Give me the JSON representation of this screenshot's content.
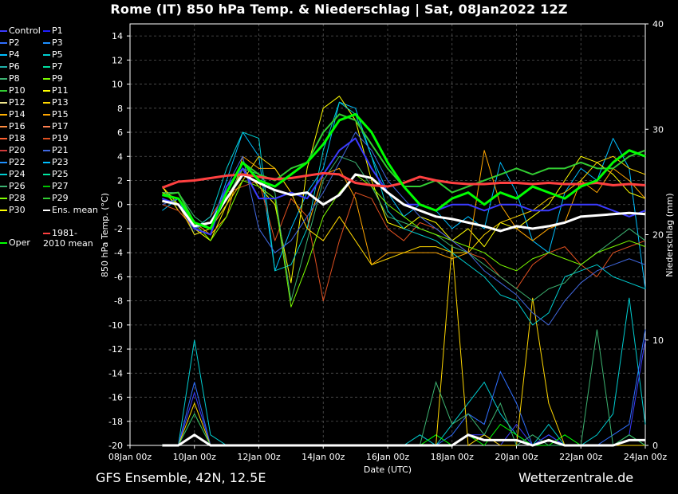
{
  "title": "Rome  (IT)  850 hPa Temp. & Niederschlag | Sat, 08Jan2022 12Z",
  "footer": {
    "left": "GFS Ensemble, 42N, 12.5E",
    "right": "Wetterzentrale.de"
  },
  "legend": [
    {
      "label": "Control",
      "color": "#3b3bff"
    },
    {
      "label": "P1",
      "color": "#2020ff"
    },
    {
      "label": "P2",
      "color": "#2f6fff"
    },
    {
      "label": "P3",
      "color": "#1e90ff"
    },
    {
      "label": "P4",
      "color": "#00bfff"
    },
    {
      "label": "P5",
      "color": "#00ced1"
    },
    {
      "label": "P6",
      "color": "#20b2aa"
    },
    {
      "label": "P7",
      "color": "#00e0a0"
    },
    {
      "label": "P8",
      "color": "#3cb371"
    },
    {
      "label": "P9",
      "color": "#7cfc00"
    },
    {
      "label": "P10",
      "color": "#32cd32"
    },
    {
      "label": "P11",
      "color": "#ffff00"
    },
    {
      "label": "P12",
      "color": "#f0e68c"
    },
    {
      "label": "P13",
      "color": "#ffd700"
    },
    {
      "label": "P14",
      "color": "#ffb000"
    },
    {
      "label": "P15",
      "color": "#ffa500"
    },
    {
      "label": "P16",
      "color": "#ff8c40"
    },
    {
      "label": "P17",
      "color": "#ff7f50"
    },
    {
      "label": "P18",
      "color": "#ff6030"
    },
    {
      "label": "P19",
      "color": "#e05020"
    },
    {
      "label": "P20",
      "color": "#d03a3a"
    },
    {
      "label": "P21",
      "color": "#4169e1"
    },
    {
      "label": "P22",
      "color": "#1e90ff"
    },
    {
      "label": "P23",
      "color": "#00bfff"
    },
    {
      "label": "P24",
      "color": "#00ced1"
    },
    {
      "label": "P25",
      "color": "#00e5a0"
    },
    {
      "label": "P26",
      "color": "#3cb371"
    },
    {
      "label": "P27",
      "color": "#00c000"
    },
    {
      "label": "P28",
      "color": "#7fff00"
    },
    {
      "label": "P29",
      "color": "#32cd32"
    },
    {
      "label": "P30",
      "color": "#ffff00"
    },
    {
      "label": "Ens. mean",
      "color": "#ffffff"
    },
    {
      "label": "Oper",
      "color": "#00ff00"
    },
    {
      "label": "1981-2010 mean",
      "color": "#ff4040"
    }
  ],
  "chart_data": {
    "type": "line",
    "xlabel": "Date (UTC)",
    "ylabel": "850 hPa Temp. (°C)",
    "y2label": "Niederschlag (mm)",
    "x_ticks": [
      "08Jan 00z",
      "10Jan 00z",
      "12Jan 00z",
      "14Jan 00z",
      "16Jan 00z",
      "18Jan 00z",
      "20Jan 00z",
      "22Jan 00z",
      "24Jan 00z"
    ],
    "xlim_hours": [
      0,
      384
    ],
    "ylim": [
      -20,
      15
    ],
    "y_ticks": [
      14,
      12,
      10,
      8,
      6,
      4,
      2,
      0,
      -2,
      -4,
      -6,
      -8,
      -10,
      -12,
      -14,
      -16,
      -18,
      -20
    ],
    "y2lim": [
      0,
      40
    ],
    "y2_ticks": [
      40,
      30,
      20,
      10,
      0
    ],
    "grid": true,
    "x_hours": [
      24,
      36,
      48,
      60,
      72,
      84,
      96,
      108,
      120,
      132,
      144,
      156,
      168,
      180,
      192,
      204,
      216,
      228,
      240,
      252,
      264,
      276,
      288,
      300,
      312,
      324,
      336,
      348,
      360,
      372,
      384
    ],
    "series": [
      {
        "name": "Ens. mean",
        "color": "#ffffff",
        "width": 3,
        "values": [
          0.3,
          0.0,
          -1.8,
          -1.5,
          0.5,
          2.5,
          1.8,
          1.2,
          0.8,
          1.0,
          0.0,
          0.8,
          2.5,
          2.2,
          1.0,
          0.0,
          -0.5,
          -1.0,
          -1.2,
          -1.5,
          -1.8,
          -2.2,
          -1.8,
          -2.0,
          -1.8,
          -1.5,
          -1.0,
          -0.9,
          -0.8,
          -0.7,
          -0.8
        ]
      },
      {
        "name": "1981-2010 mean",
        "color": "#ff4040",
        "width": 3,
        "values": [
          1.4,
          1.9,
          2.0,
          2.2,
          2.4,
          2.5,
          2.3,
          2.1,
          2.2,
          2.4,
          2.6,
          2.5,
          1.8,
          1.6,
          1.5,
          1.8,
          2.3,
          2.0,
          1.8,
          1.7,
          1.7,
          1.8,
          1.8,
          1.7,
          1.8,
          1.7,
          1.7,
          1.8,
          1.6,
          1.7,
          1.6
        ]
      },
      {
        "name": "Oper",
        "color": "#00ff00",
        "width": 3,
        "values": [
          0.8,
          0.5,
          -1.5,
          -2.0,
          1.0,
          3.5,
          2.0,
          1.5,
          2.5,
          3.5,
          5.0,
          7.0,
          7.5,
          6.0,
          3.5,
          1.5,
          0.0,
          -0.5,
          0.5,
          1.0,
          0.0,
          1.0,
          0.5,
          1.5,
          1.0,
          0.5,
          1.5,
          2.0,
          3.5,
          4.5,
          4.0
        ]
      },
      {
        "name": "Control",
        "color": "#3b3bff",
        "width": 2,
        "values": [
          0.5,
          0.0,
          -2.0,
          -2.5,
          1.5,
          3.0,
          0.5,
          0.5,
          1.0,
          0.5,
          2.5,
          4.5,
          5.5,
          3.0,
          1.0,
          0.0,
          0.0,
          -0.5,
          0.0,
          0.0,
          -0.5,
          0.0,
          0.0,
          -0.5,
          -0.5,
          0.0,
          0.0,
          0.0,
          -0.5,
          -1.0,
          -0.5
        ]
      },
      {
        "name": "P4",
        "color": "#00bfff",
        "width": 1,
        "values": [
          -0.5,
          0.5,
          -2.5,
          -2.0,
          2.0,
          6.0,
          4.0,
          -5.5,
          -2.0,
          1.0,
          3.0,
          8.5,
          8.0,
          4.0,
          1.0,
          -1.0,
          0.0,
          -0.5,
          -2.0,
          -1.0,
          -2.0,
          3.5,
          1.0,
          -3.0,
          -4.0,
          1.0,
          3.0,
          2.0,
          5.5,
          3.0,
          -7.0
        ]
      },
      {
        "name": "P11",
        "color": "#ffff00",
        "width": 1,
        "values": [
          1.5,
          -0.5,
          -2.0,
          -3.0,
          0.0,
          3.0,
          1.5,
          0.0,
          -6.5,
          3.0,
          8.0,
          9.0,
          7.0,
          2.0,
          -1.5,
          -2.0,
          -1.0,
          -1.5,
          -3.0,
          -2.0,
          -3.5,
          -1.5,
          -2.0,
          -1.0,
          0.0,
          2.0,
          4.0,
          3.5,
          2.5,
          1.0,
          0.5
        ]
      },
      {
        "name": "P15",
        "color": "#ffa500",
        "width": 1,
        "values": [
          1.0,
          0.5,
          -1.5,
          -2.5,
          -1.0,
          4.0,
          3.0,
          3.0,
          1.0,
          -2.0,
          2.5,
          3.0,
          0.5,
          -5.0,
          -4.0,
          -4.0,
          -4.0,
          -4.0,
          -4.5,
          -4.0,
          4.5,
          0.0,
          -2.0,
          -3.0,
          -2.0,
          -1.5,
          2.0,
          1.0,
          3.0,
          2.0,
          0.5
        ]
      },
      {
        "name": "P19",
        "color": "#e05020",
        "width": 1,
        "values": [
          0.0,
          -0.5,
          -2.0,
          -1.0,
          1.0,
          1.5,
          2.0,
          -3.0,
          0.5,
          -1.0,
          -8.0,
          -3.0,
          1.0,
          0.5,
          -2.0,
          -3.0,
          -1.5,
          -2.0,
          -3.0,
          -4.0,
          -4.5,
          -6.0,
          -7.0,
          -5.0,
          -4.0,
          -3.5,
          -5.0,
          -6.0,
          -4.0,
          -3.5,
          -3.0
        ]
      },
      {
        "name": "P24",
        "color": "#00ced1",
        "width": 1,
        "values": [
          0.5,
          0.0,
          -2.0,
          -1.0,
          3.0,
          6.0,
          5.5,
          -5.5,
          -5.0,
          -2.0,
          4.5,
          8.5,
          7.5,
          4.0,
          -0.5,
          -2.0,
          -2.5,
          -3.0,
          -4.0,
          -5.0,
          -6.0,
          -7.5,
          -8.0,
          -10.0,
          -9.0,
          -6.0,
          -5.5,
          -5.0,
          -6.0,
          -6.5,
          -7.0
        ]
      },
      {
        "name": "P26",
        "color": "#3cb371",
        "width": 1,
        "values": [
          1.0,
          1.0,
          -1.0,
          -2.0,
          0.5,
          3.0,
          2.5,
          1.0,
          -8.0,
          -3.0,
          2.0,
          4.0,
          3.5,
          1.5,
          -1.0,
          -1.5,
          -2.0,
          -2.5,
          -3.5,
          -4.0,
          -5.0,
          -6.0,
          -7.0,
          -8.0,
          -7.0,
          -6.5,
          -5.0,
          -4.0,
          -3.0,
          -2.0,
          -3.0
        ]
      },
      {
        "name": "P29",
        "color": "#32cd32",
        "width": 2,
        "values": [
          0.8,
          1.0,
          -1.5,
          -2.0,
          1.0,
          3.5,
          2.5,
          2.0,
          3.0,
          3.5,
          6.0,
          7.5,
          7.0,
          5.0,
          3.0,
          1.5,
          1.5,
          2.0,
          1.0,
          1.5,
          2.0,
          2.5,
          3.0,
          2.5,
          3.0,
          3.0,
          3.5,
          3.0,
          3.0,
          4.0,
          4.5
        ]
      },
      {
        "name": "P13",
        "color": "#ffd700",
        "width": 1,
        "values": [
          1.5,
          0.0,
          -2.5,
          -2.0,
          0.0,
          2.0,
          4.0,
          3.0,
          1.0,
          -2.0,
          -3.0,
          -1.0,
          -3.0,
          -5.0,
          -4.5,
          -4.0,
          -3.5,
          -3.5,
          -4.0,
          -4.0,
          -2.5,
          -1.5,
          -1.0,
          -0.5,
          0.5,
          1.0,
          2.0,
          3.5,
          4.0,
          3.0,
          2.5
        ]
      },
      {
        "name": "P9",
        "color": "#7cfc00",
        "width": 1,
        "values": [
          1.0,
          0.0,
          -1.5,
          -3.0,
          -1.0,
          2.0,
          1.5,
          0.5,
          -8.5,
          -5.0,
          -1.0,
          1.0,
          2.5,
          1.5,
          0.0,
          -1.0,
          -2.0,
          -2.5,
          -3.0,
          -3.5,
          -4.0,
          -5.0,
          -5.5,
          -4.5,
          -4.0,
          -4.5,
          -5.0,
          -4.0,
          -3.5,
          -3.0,
          -3.5
        ]
      },
      {
        "name": "P21",
        "color": "#4169e1",
        "width": 1,
        "values": [
          0.0,
          0.5,
          -2.0,
          -1.5,
          1.5,
          4.0,
          -2.0,
          -4.0,
          -3.0,
          -1.0,
          1.0,
          3.5,
          6.0,
          4.5,
          2.0,
          0.5,
          -1.0,
          -2.0,
          -3.0,
          -4.0,
          -5.5,
          -6.5,
          -7.5,
          -9.0,
          -10.0,
          -8.0,
          -6.5,
          -5.5,
          -5.0,
          -4.5,
          -5.0
        ]
      }
    ],
    "precip": [
      {
        "name": "P24",
        "color": "#00ced1",
        "values": [
          0,
          0,
          10,
          1,
          0,
          0,
          0,
          0,
          0,
          0,
          0,
          0,
          0,
          0,
          0,
          0,
          1,
          0,
          2,
          4,
          6,
          3,
          1,
          0,
          2,
          0,
          0,
          1,
          3,
          14,
          2
        ]
      },
      {
        "name": "P2",
        "color": "#2f6fff",
        "values": [
          0,
          0,
          6,
          0,
          0,
          0,
          0,
          0,
          0,
          0,
          0,
          0,
          0,
          0,
          0,
          0,
          0,
          0,
          1,
          3,
          2,
          7,
          4,
          0,
          1,
          0,
          0,
          0,
          1,
          2,
          11
        ]
      },
      {
        "name": "Control",
        "color": "#3b3bff",
        "values": [
          0,
          0,
          5,
          0,
          0,
          0,
          0,
          0,
          0,
          0,
          0,
          0,
          0,
          0,
          0,
          0,
          0,
          0,
          0,
          1,
          1,
          0,
          2,
          0,
          1,
          0,
          0,
          0,
          0,
          1,
          10
        ]
      },
      {
        "name": "Oper",
        "color": "#00ff00",
        "values": [
          0,
          0,
          3,
          0,
          0,
          0,
          0,
          0,
          0,
          0,
          0,
          0,
          0,
          0,
          0,
          0,
          0,
          1,
          0,
          1,
          0,
          2,
          1,
          0,
          0,
          1,
          0,
          0,
          0,
          1,
          0
        ]
      },
      {
        "name": "P13",
        "color": "#ffd700",
        "values": [
          0,
          0,
          4,
          0,
          0,
          0,
          0,
          0,
          0,
          0,
          0,
          0,
          0,
          0,
          0,
          0,
          0,
          0,
          19,
          0,
          1,
          0,
          0,
          14,
          4,
          0,
          0,
          0,
          0,
          0,
          0
        ]
      },
      {
        "name": "P26",
        "color": "#3cb371",
        "values": [
          0,
          0,
          3,
          0,
          0,
          0,
          0,
          0,
          0,
          0,
          0,
          0,
          0,
          0,
          0,
          0,
          0,
          6,
          2,
          3,
          1,
          4,
          0,
          1,
          0,
          0,
          0,
          11,
          0,
          1,
          0
        ]
      },
      {
        "name": "Ens. mean",
        "color": "#ffffff",
        "values": [
          0,
          0,
          1,
          0,
          0,
          0,
          0,
          0,
          0,
          0,
          0,
          0,
          0,
          0,
          0,
          0,
          0,
          0,
          0,
          1,
          0.5,
          0.5,
          0.5,
          0,
          0.5,
          0,
          0,
          0,
          0,
          0.5,
          0.5
        ]
      }
    ]
  }
}
